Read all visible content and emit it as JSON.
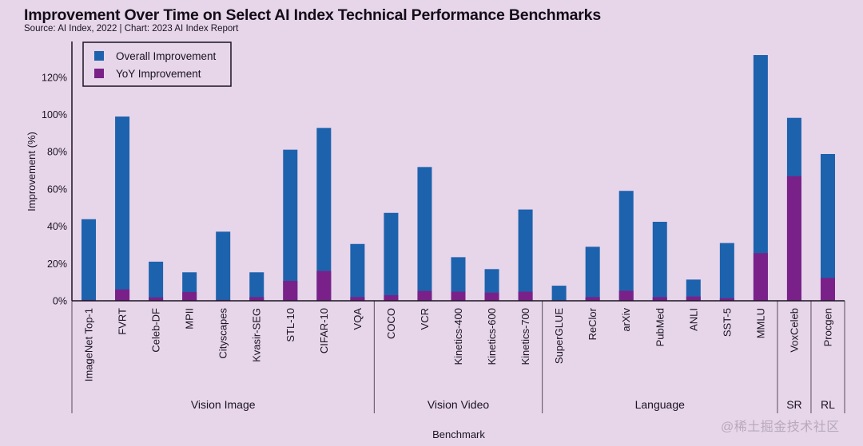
{
  "header": {
    "title": "Improvement Over Time on Select AI Index Technical Performance Benchmarks",
    "subtitle": "Source: AI Index, 2022 | Chart: 2023 AI Index Report"
  },
  "watermark": "@稀土掘金技术社区",
  "colors": {
    "background": "#e7d5ea",
    "overall": "#1d62ad",
    "yoy": "#7a2189",
    "axis": "#1a1420",
    "divider": "#6e6472"
  },
  "chart_data": {
    "type": "bar",
    "stacked": "overlay",
    "title": "Improvement Over Time on Select AI Index Technical Performance Benchmarks",
    "subtitle": "Source: AI Index, 2022 | Chart: 2023 AI Index Report",
    "xlabel": "Benchmark",
    "ylabel": "Improvement (%)",
    "ylim": [
      0,
      138
    ],
    "yticks": [
      0,
      20,
      40,
      60,
      80,
      100,
      120
    ],
    "ytick_labels": [
      "0%",
      "20%",
      "40%",
      "60%",
      "80%",
      "100%",
      "120%"
    ],
    "grid": false,
    "legend": {
      "position": "top-left",
      "entries": [
        "Overall Improvement",
        "YoY Improvement"
      ]
    },
    "categories": [
      "ImageNet Top-1",
      "FVRT",
      "Celeb-DF",
      "MPII",
      "Cityscapes",
      "Kvasir-SEG",
      "STL-10",
      "CIFAR-10",
      "VQA",
      "COCO",
      "VCR",
      "Kinetics-400",
      "Kinetics-600",
      "Kinetics-700",
      "SuperGLUE",
      "ReClor",
      "arXiv",
      "PubMed",
      "ANLI",
      "SST-5",
      "MMLU",
      "VoxCeleb",
      "Procgen"
    ],
    "groups": [
      {
        "name": "Vision Image",
        "start": 0,
        "end": 8
      },
      {
        "name": "Vision Video",
        "start": 9,
        "end": 13
      },
      {
        "name": "Language",
        "start": 14,
        "end": 20
      },
      {
        "name": "SR",
        "start": 21,
        "end": 21
      },
      {
        "name": "RL",
        "start": 22,
        "end": 22
      }
    ],
    "series": [
      {
        "name": "Overall Improvement",
        "values": [
          43.8,
          98.9,
          21.0,
          15.3,
          37.1,
          15.3,
          81.1,
          92.8,
          30.5,
          47.2,
          71.8,
          23.4,
          17.0,
          49.0,
          8.1,
          29.0,
          59.0,
          42.4,
          11.4,
          31.0,
          131.9,
          98.2,
          78.8
        ]
      },
      {
        "name": "YoY Improvement",
        "values": [
          0.5,
          6.1,
          1.8,
          4.7,
          0.5,
          2.0,
          10.7,
          16.0,
          2.0,
          3.0,
          5.3,
          4.9,
          4.4,
          4.9,
          0.3,
          2.0,
          5.4,
          2.0,
          2.3,
          1.4,
          25.6,
          66.9,
          12.3
        ]
      }
    ]
  }
}
